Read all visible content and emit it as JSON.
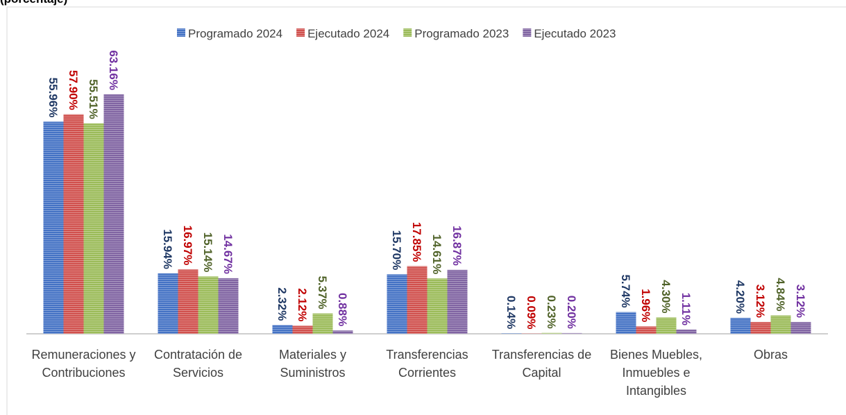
{
  "chart_data": {
    "type": "bar",
    "subtitle": "(porcentaje)",
    "categories": [
      "Remuneraciones y Contribuciones",
      "Contratación de Servicios",
      "Materiales y Suministros",
      "Transferencias Corrientes",
      "Transferencias de Capital",
      "Bienes Muebles, Inmuebles e Intangibles",
      "Obras"
    ],
    "series": [
      {
        "name": "Programado 2024",
        "color": "#4472c4",
        "label_color": "#1f3864",
        "values": [
          55.96,
          15.94,
          2.32,
          15.7,
          0.14,
          5.74,
          4.2
        ],
        "value_labels": [
          "55.96%",
          "15.94%",
          "2.32%",
          "15.70%",
          "0.14%",
          "5.74%",
          "4.20%"
        ]
      },
      {
        "name": "Ejecutado 2024",
        "color": "#d0504d",
        "label_color": "#c00000",
        "values": [
          57.9,
          16.97,
          2.12,
          17.85,
          0.09,
          1.96,
          3.12
        ],
        "value_labels": [
          "57.90%",
          "16.97%",
          "2.12%",
          "17.85%",
          "0.09%",
          "1.96%",
          "3.12%"
        ]
      },
      {
        "name": "Programado 2023",
        "color": "#9bbb59",
        "label_color": "#4f6228",
        "values": [
          55.51,
          15.14,
          5.37,
          14.61,
          0.23,
          4.3,
          4.84
        ],
        "value_labels": [
          "55.51%",
          "15.14%",
          "5.37%",
          "14.61%",
          "0.23%",
          "4.30%",
          "4.84%"
        ]
      },
      {
        "name": "Ejecutado 2023",
        "color": "#8064a2",
        "label_color": "#7030a0",
        "values": [
          63.16,
          14.67,
          0.88,
          16.87,
          0.2,
          1.11,
          3.12
        ],
        "value_labels": [
          "63.16%",
          "14.67%",
          "0.88%",
          "16.87%",
          "0.20%",
          "1.11%",
          "3.12%"
        ]
      }
    ]
  }
}
